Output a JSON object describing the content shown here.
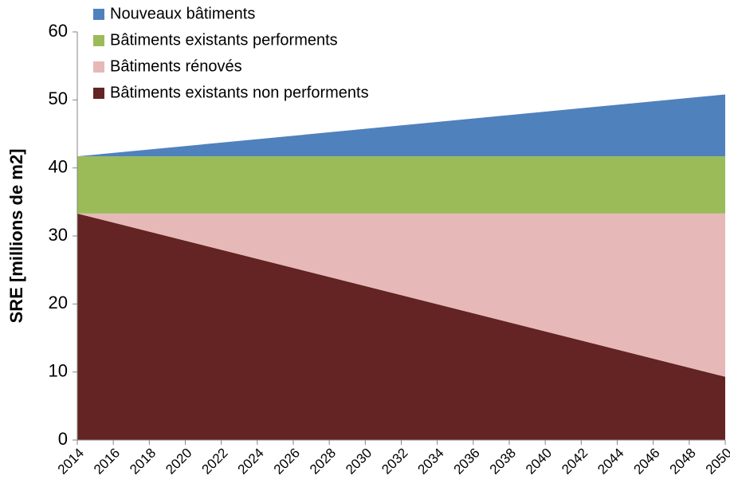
{
  "chart_data": {
    "type": "stacked-area",
    "y_label": "SRE [millions de m2]",
    "x": [
      2014,
      2050
    ],
    "series": [
      {
        "name": "Nouveaux bâtiments",
        "color": "#4f81bd",
        "values": [
          0,
          9.1
        ]
      },
      {
        "name": "Bâtiments existants performents",
        "color": "#9bbb59",
        "values": [
          8.4,
          8.4
        ]
      },
      {
        "name": "Bâtiments rénovés",
        "color": "#e6b9b8",
        "values": [
          0,
          24
        ]
      },
      {
        "name": "Bâtiments existants non performents",
        "color": "#632423",
        "values": [
          33.3,
          9.3
        ]
      }
    ],
    "xlim": [
      2014,
      2050
    ],
    "xticks": [
      2014,
      2016,
      2018,
      2020,
      2022,
      2024,
      2026,
      2028,
      2030,
      2032,
      2034,
      2036,
      2038,
      2040,
      2042,
      2044,
      2046,
      2048,
      2050
    ],
    "ylim": [
      0,
      60
    ],
    "yticks": [
      0,
      10,
      20,
      30,
      40,
      50,
      60
    ],
    "legend": "top-left"
  }
}
